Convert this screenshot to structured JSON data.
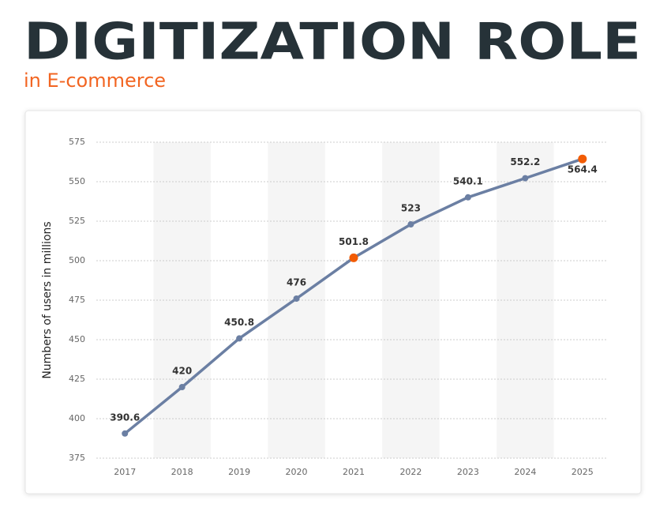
{
  "chart_data": {
    "type": "line",
    "title": "DIGITIZATION ROLE",
    "subtitle": "in E-commerce",
    "y_label": "Numbers of users in millions",
    "categories": [
      "2017",
      "2018",
      "2019",
      "2020",
      "2021",
      "2022",
      "2023",
      "2024",
      "2025"
    ],
    "series": [
      {
        "color": "#6b7fa3",
        "values": [
          390.6,
          420,
          450.8,
          476,
          501.8,
          523,
          540.1,
          552.2,
          564.4
        ],
        "point_colors": [
          "#6b7fa3",
          "#6b7fa3",
          "#6b7fa3",
          "#6b7fa3",
          "#f25c05",
          "#6b7fa3",
          "#6b7fa3",
          "#6b7fa3",
          "#f25c05"
        ]
      }
    ],
    "ylim": [
      375,
      575
    ],
    "yticks": [
      375,
      400,
      425,
      450,
      475,
      500,
      525,
      550,
      575
    ],
    "grid": true
  }
}
